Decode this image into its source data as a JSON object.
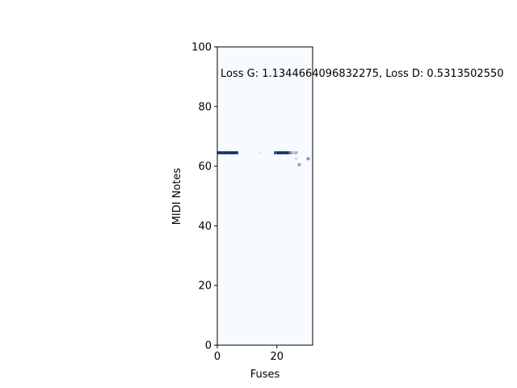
{
  "chart_data": {
    "type": "heatmap",
    "title": "",
    "annotation": "Loss G: 1.1344664096832275, Loss D: 0.5313502550",
    "xlabel": "Fuses",
    "ylabel": "MIDI Notes",
    "xlim": [
      0,
      32
    ],
    "ylim": [
      0,
      100
    ],
    "xticks": [
      0,
      20
    ],
    "yticks": [
      0,
      20,
      40,
      60,
      80,
      100
    ],
    "colormap": "Blues",
    "cells": [
      {
        "x": 0,
        "y": 64,
        "v": 1.0
      },
      {
        "x": 1,
        "y": 64,
        "v": 1.0
      },
      {
        "x": 2,
        "y": 64,
        "v": 1.0
      },
      {
        "x": 3,
        "y": 64,
        "v": 1.0
      },
      {
        "x": 4,
        "y": 64,
        "v": 1.0
      },
      {
        "x": 5,
        "y": 64,
        "v": 1.0
      },
      {
        "x": 6,
        "y": 64,
        "v": 1.0
      },
      {
        "x": 14,
        "y": 64,
        "v": 0.08
      },
      {
        "x": 19,
        "y": 64,
        "v": 0.85
      },
      {
        "x": 20,
        "y": 64,
        "v": 1.0
      },
      {
        "x": 21,
        "y": 64,
        "v": 1.0
      },
      {
        "x": 22,
        "y": 64,
        "v": 1.0
      },
      {
        "x": 23,
        "y": 64,
        "v": 1.0
      },
      {
        "x": 24,
        "y": 64,
        "v": 0.6
      },
      {
        "x": 25,
        "y": 64,
        "v": 0.25
      },
      {
        "x": 26,
        "y": 64,
        "v": 0.35
      },
      {
        "x": 26,
        "y": 62,
        "v": 0.15
      },
      {
        "x": 27,
        "y": 60,
        "v": 0.45
      },
      {
        "x": 30,
        "y": 62,
        "v": 0.5
      }
    ]
  }
}
